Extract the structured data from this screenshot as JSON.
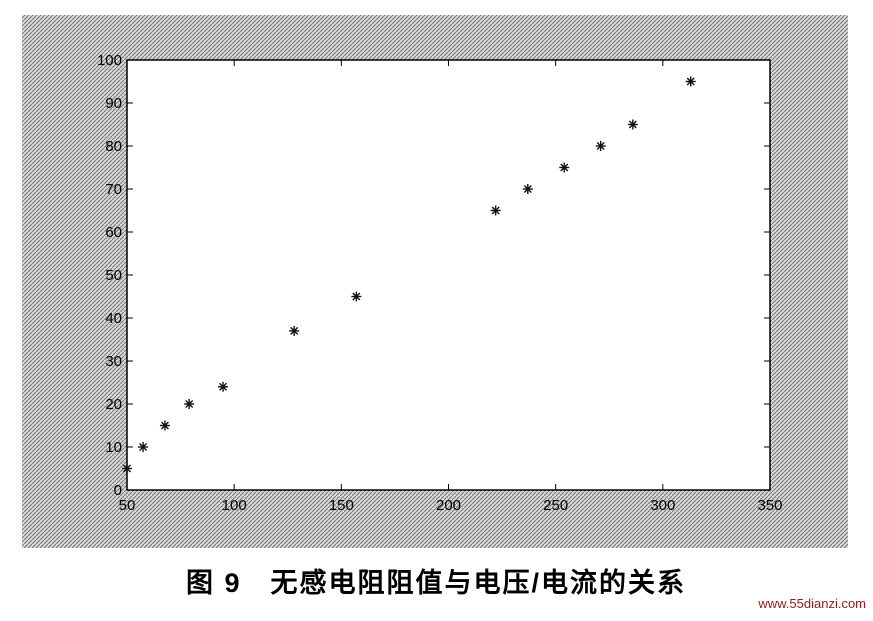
{
  "chart_data": {
    "type": "scatter",
    "title": "图 9　无感电阻阻值与电压/电流的关系",
    "x": [
      50,
      57.5,
      67.7,
      79,
      94.8,
      128,
      157,
      222,
      237,
      254,
      271,
      286,
      313
    ],
    "series": [
      {
        "color": "#111111",
        "values": [
          5,
          10,
          15,
          20,
          24,
          37,
          45,
          65,
          70,
          75,
          80,
          85,
          95
        ]
      }
    ],
    "xlim": [
      50,
      350
    ],
    "xticks": [
      50,
      100,
      150,
      200,
      250,
      300,
      350
    ],
    "ylim": [
      0,
      100
    ],
    "yticks": [
      0,
      10,
      20,
      30,
      40,
      50,
      60,
      70,
      80,
      90,
      100
    ],
    "grid": false
  },
  "watermark": "www.55dianzi.com"
}
